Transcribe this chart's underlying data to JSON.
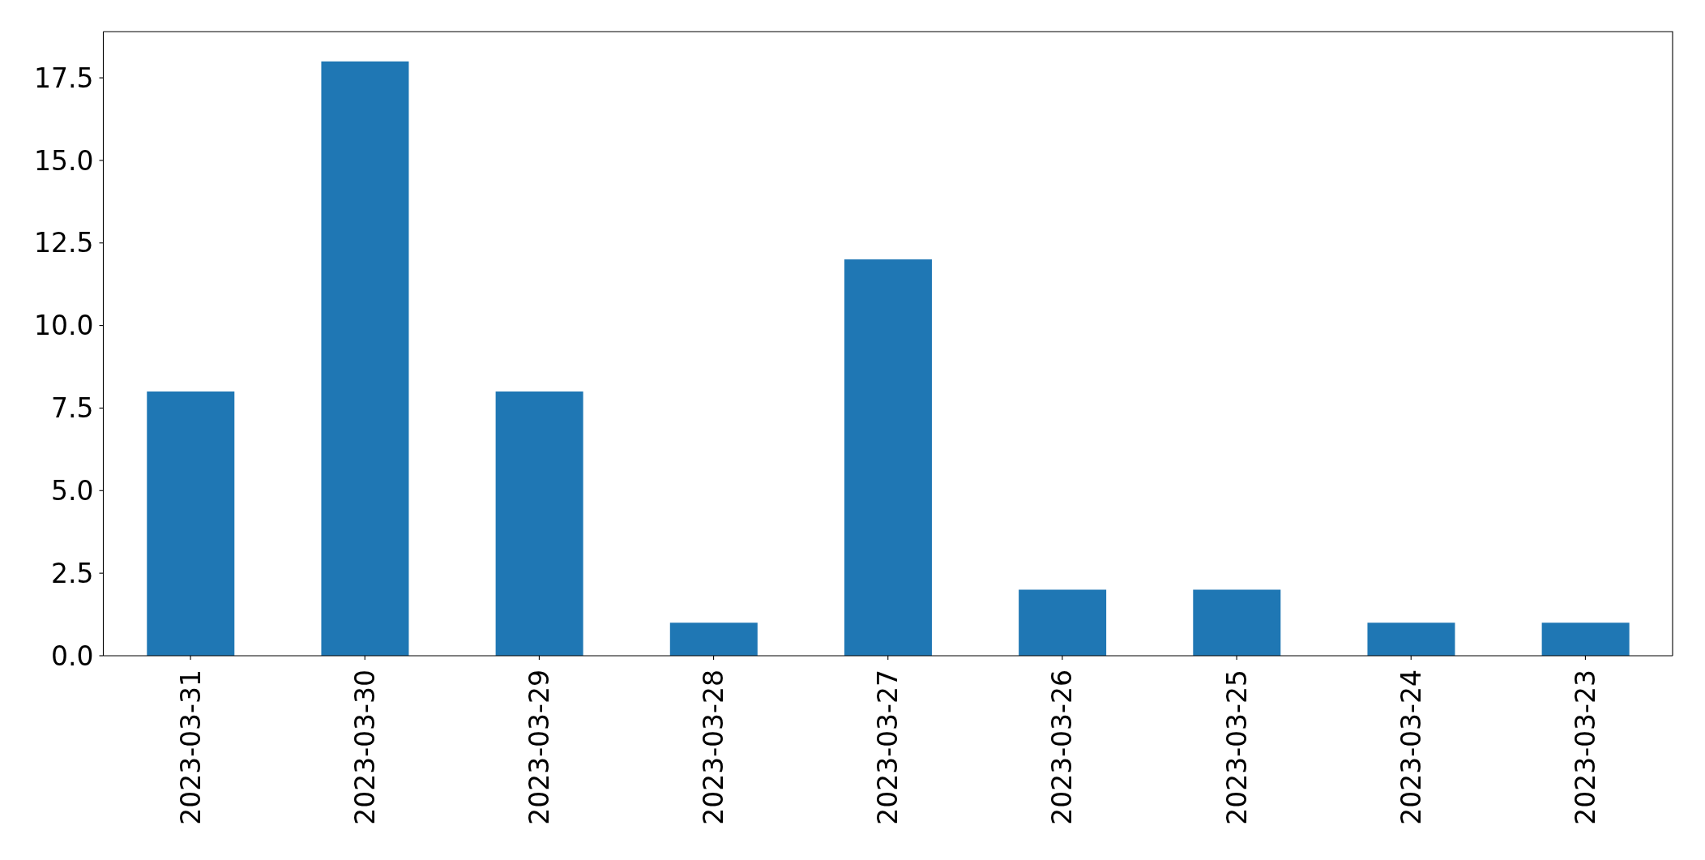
{
  "chart_data": {
    "type": "bar",
    "categories": [
      "2023-03-31",
      "2023-03-30",
      "2023-03-29",
      "2023-03-28",
      "2023-03-27",
      "2023-03-26",
      "2023-03-25",
      "2023-03-24",
      "2023-03-23"
    ],
    "values": [
      8,
      18,
      8,
      1,
      12,
      2,
      2,
      1,
      1
    ],
    "color": "#1f77b4",
    "ylim": [
      0,
      18.9
    ],
    "yticks": [
      {
        "value": 0,
        "label": "0.0"
      },
      2.5,
      {
        "value": 5,
        "label": "5.0"
      },
      7.5,
      {
        "value": 10,
        "label": "10.0"
      },
      12.5,
      {
        "value": 15,
        "label": "15.0"
      },
      17.5
    ]
  }
}
